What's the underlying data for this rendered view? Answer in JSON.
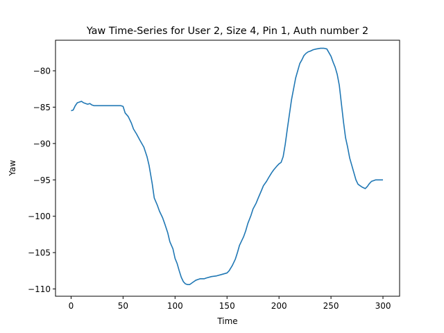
{
  "chart_data": {
    "type": "line",
    "title": "Yaw Time-Series for User 2, Size 4, Pin 1, Auth number 2",
    "xlabel": "Time",
    "ylabel": "Yaw",
    "xlim": [
      -15,
      316
    ],
    "ylim": [
      -111.0,
      -75.8
    ],
    "xticks": [
      0,
      50,
      100,
      150,
      200,
      250,
      300
    ],
    "yticks": [
      -110,
      -105,
      -100,
      -95,
      -90,
      -85,
      -80
    ],
    "xtick_labels": [
      "0",
      "50",
      "100",
      "150",
      "200",
      "250",
      "300"
    ],
    "ytick_labels": [
      "−110",
      "−105",
      "−100",
      "−95",
      "−90",
      "−85",
      "−80"
    ],
    "grid": false,
    "legend": "none",
    "series": [
      {
        "color": "#1f77b4",
        "x": [
          0,
          2,
          4,
          6,
          8,
          10,
          12,
          14,
          16,
          18,
          20,
          22,
          25,
          30,
          35,
          40,
          45,
          48,
          50,
          52,
          55,
          58,
          60,
          63,
          66,
          70,
          73,
          75,
          78,
          80,
          83,
          85,
          88,
          90,
          93,
          95,
          98,
          100,
          102,
          104,
          106,
          108,
          110,
          112,
          114,
          116,
          118,
          120,
          122,
          124,
          126,
          128,
          130,
          135,
          140,
          145,
          150,
          152,
          155,
          158,
          160,
          162,
          164,
          166,
          168,
          170,
          173,
          175,
          178,
          180,
          183,
          185,
          188,
          190,
          193,
          195,
          198,
          200,
          202,
          204,
          206,
          208,
          210,
          212,
          214,
          216,
          218,
          220,
          222,
          224,
          226,
          228,
          230,
          233,
          236,
          240,
          243,
          246,
          248,
          250,
          252,
          254,
          256,
          258,
          260,
          262,
          264,
          266,
          268,
          270,
          272,
          274,
          276,
          278,
          280,
          283,
          285,
          287,
          289,
          291,
          293,
          296,
          300
        ],
        "y": [
          -85.5,
          -85.4,
          -84.8,
          -84.4,
          -84.3,
          -84.2,
          -84.4,
          -84.5,
          -84.6,
          -84.5,
          -84.7,
          -84.8,
          -84.8,
          -84.8,
          -84.8,
          -84.8,
          -84.8,
          -84.8,
          -84.9,
          -85.8,
          -86.3,
          -87.2,
          -88.0,
          -88.7,
          -89.5,
          -90.5,
          -91.8,
          -93.0,
          -95.5,
          -97.5,
          -98.5,
          -99.3,
          -100.2,
          -101.0,
          -102.3,
          -103.5,
          -104.5,
          -105.8,
          -106.5,
          -107.5,
          -108.4,
          -109.0,
          -109.3,
          -109.4,
          -109.4,
          -109.2,
          -109.0,
          -108.8,
          -108.7,
          -108.6,
          -108.6,
          -108.6,
          -108.5,
          -108.3,
          -108.2,
          -108.0,
          -107.8,
          -107.5,
          -106.8,
          -105.9,
          -105.0,
          -104.0,
          -103.4,
          -102.8,
          -102.0,
          -101.0,
          -99.9,
          -99.0,
          -98.2,
          -97.5,
          -96.5,
          -95.8,
          -95.2,
          -94.7,
          -94.0,
          -93.6,
          -93.1,
          -92.8,
          -92.6,
          -91.8,
          -90.1,
          -88.0,
          -86.0,
          -84.0,
          -82.5,
          -81.0,
          -80.0,
          -79.0,
          -78.5,
          -77.9,
          -77.6,
          -77.4,
          -77.3,
          -77.1,
          -77.0,
          -76.9,
          -76.9,
          -77.0,
          -77.5,
          -78.0,
          -78.8,
          -79.5,
          -80.5,
          -82.0,
          -84.5,
          -87.0,
          -89.2,
          -90.5,
          -92.0,
          -93.0,
          -94.0,
          -95.0,
          -95.6,
          -95.8,
          -96.0,
          -96.2,
          -95.9,
          -95.5,
          -95.2,
          -95.1,
          -95.0,
          -95.0,
          -95.0
        ]
      }
    ]
  }
}
